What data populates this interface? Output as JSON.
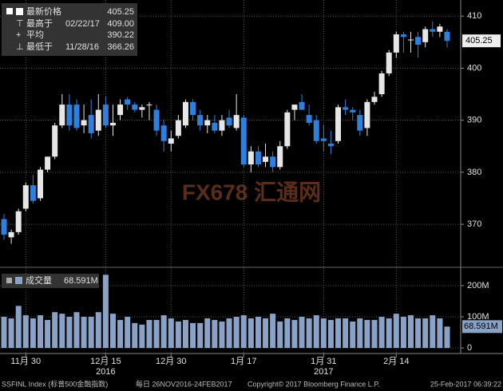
{
  "chart_data": {
    "type": "candlestick",
    "legend": [
      {
        "name": "最新价格",
        "value": 405.25
      },
      {
        "name": "最高于",
        "date": "02/22/17",
        "value": 409,
        "value_label": "409.00"
      },
      {
        "name": "平均",
        "value": 390.22
      },
      {
        "name": "最低于",
        "date": "11/28/16",
        "value": 366.26
      }
    ],
    "last_price": 405.25,
    "categories": [
      null,
      null,
      null,
      "11月 30",
      null,
      null,
      null,
      null,
      null,
      null,
      null,
      null,
      null,
      null,
      "12月 15",
      null,
      null,
      null,
      null,
      null,
      null,
      null,
      null,
      "12月 30",
      null,
      null,
      null,
      null,
      null,
      null,
      null,
      null,
      null,
      "1月 17",
      null,
      null,
      null,
      null,
      null,
      null,
      null,
      null,
      null,
      null,
      "1月 31",
      null,
      null,
      null,
      null,
      null,
      null,
      null,
      null,
      null,
      "2月 14",
      null,
      null,
      null,
      null,
      null,
      null,
      null
    ],
    "years": [
      null,
      null,
      null,
      null,
      null,
      null,
      null,
      null,
      null,
      null,
      null,
      null,
      null,
      null,
      "2016",
      null,
      null,
      null,
      null,
      null,
      null,
      null,
      null,
      null,
      null,
      null,
      null,
      null,
      null,
      null,
      null,
      null,
      null,
      null,
      null,
      null,
      null,
      null,
      null,
      null,
      null,
      null,
      null,
      null,
      "2017",
      null,
      null,
      null,
      null,
      null,
      null,
      null,
      null,
      null,
      null,
      null,
      null,
      null,
      null,
      null,
      null,
      null
    ],
    "open": [
      371,
      367.5,
      368.5,
      373,
      377.5,
      375,
      380.5,
      383,
      389,
      393,
      393,
      389,
      391,
      388,
      393,
      389,
      391,
      394,
      393,
      392,
      393,
      392,
      389,
      385.5,
      387,
      389,
      393.5,
      391,
      389,
      389.5,
      388,
      390.5,
      388.5,
      390.5,
      381.5,
      384,
      382,
      383,
      381,
      385,
      392,
      393.5,
      391,
      390,
      386.5,
      385.5,
      386,
      392.5,
      392,
      391,
      388.5,
      393.5,
      395,
      399,
      403,
      406.5,
      405.5,
      406,
      405,
      407.5,
      407,
      407
    ],
    "high": [
      372,
      369,
      373,
      378,
      379.5,
      381,
      383,
      389.5,
      395,
      395,
      394,
      393,
      394,
      395,
      394.5,
      393,
      394,
      394.5,
      393.5,
      393,
      393.5,
      393,
      390,
      388,
      391,
      394,
      394,
      392,
      391,
      391,
      391,
      392,
      395,
      391,
      385,
      385,
      385.5,
      384,
      386,
      392,
      393,
      395,
      393,
      391,
      389,
      388,
      393,
      394,
      392.5,
      392,
      394,
      395.5,
      399.5,
      403.5,
      407,
      407,
      407,
      407,
      408,
      409,
      408.5,
      407.5
    ],
    "low": [
      367,
      366.26,
      368,
      372.5,
      374,
      374.5,
      380,
      382.5,
      388.5,
      388,
      388,
      387.5,
      386.5,
      387,
      388.5,
      387,
      390,
      392,
      391.5,
      390.5,
      390,
      387,
      384,
      384,
      386.5,
      388.5,
      390,
      388,
      387.5,
      387.5,
      387,
      388.5,
      388,
      381,
      380,
      381,
      381,
      380,
      380.5,
      384.5,
      390,
      392.5,
      389,
      385.5,
      384,
      383.5,
      385.5,
      391,
      390,
      387,
      387,
      393,
      394.5,
      398.5,
      402,
      403,
      403,
      402,
      404,
      406,
      406,
      404
    ],
    "close": [
      368,
      368.5,
      372.5,
      377.5,
      374.5,
      380.5,
      383,
      389,
      393,
      389,
      388.5,
      390,
      387.5,
      392,
      389,
      389.5,
      393,
      393,
      392,
      392.5,
      393,
      388,
      386,
      386.5,
      390,
      393.5,
      391,
      389,
      390,
      388,
      390,
      389,
      391,
      381.5,
      384,
      381.5,
      383,
      381,
      385,
      391.5,
      393,
      392,
      389.5,
      386,
      386,
      385,
      392.5,
      392,
      391.5,
      388,
      393.5,
      394.5,
      399,
      403,
      406.5,
      406,
      405.5,
      404.5,
      407.5,
      407,
      408,
      405.25
    ],
    "ylim": [
      362.5,
      413.1
    ],
    "yticks": [
      370,
      380,
      390,
      400,
      410
    ],
    "up_color": "#e6e6e6",
    "down_color": "#2f80dc",
    "volume": {
      "name": "成交量",
      "values": [
        100,
        95,
        135,
        105,
        95,
        105,
        90,
        115,
        110,
        100,
        115,
        100,
        100,
        115,
        235,
        110,
        90,
        100,
        80,
        75,
        90,
        90,
        105,
        95,
        85,
        90,
        80,
        80,
        95,
        90,
        85,
        95,
        100,
        105,
        95,
        100,
        95,
        110,
        85,
        95,
        90,
        100,
        95,
        105,
        95,
        90,
        95,
        95,
        85,
        95,
        90,
        90,
        100,
        95,
        110,
        100,
        105,
        95,
        95,
        105,
        95,
        68.591
      ],
      "last": 68.591,
      "last_label": "68.591M",
      "color": "#8aa2c6",
      "ylim": [
        -10,
        246
      ],
      "yticks": [
        0,
        {
          "value": 100,
          "label": "100M"
        },
        {
          "value": 200,
          "label": "200M"
        }
      ]
    },
    "grid": true,
    "watermark": "FX678 汇通网",
    "footer": [
      "SSFINL Index (标普500金融指数)",
      "每日 26NOV2016-24FEB2017",
      "Copyright© 2017 Bloomberg Finance L.P.",
      "25-Feb-2017 06:39:22"
    ]
  }
}
